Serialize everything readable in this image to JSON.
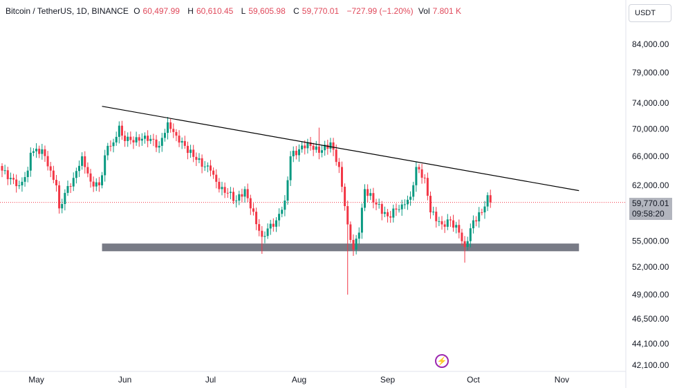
{
  "header": {
    "symbol": "Bitcoin / TetherUS, 1D, BINANCE",
    "o_label": "O",
    "o": "60,497.99",
    "h_label": "H",
    "h": "60,610.45",
    "l_label": "L",
    "l": "59,605.98",
    "c_label": "C",
    "c": "59,770.01",
    "change": "−727.99 (−1.20%)",
    "vol_label": "Vol",
    "vol": "7.801 K"
  },
  "currency_button": "USDT",
  "price_label": {
    "price": "59,770.01",
    "countdown": "09:58:20"
  },
  "colors": {
    "up": "#089981",
    "down": "#f23645",
    "trendline": "#000000",
    "support": "#787b86"
  },
  "chart_data": {
    "type": "candlestick",
    "scale": "log",
    "y_ticks": [
      "84,000.00",
      "79,000.00",
      "74,000.00",
      "70,000.00",
      "66,000.00",
      "62,000.00",
      "55,000.00",
      "52,000.00",
      "49,000.00",
      "46,500.00",
      "44,100.00",
      "42,100.00"
    ],
    "x_ticks": [
      "May",
      "Jun",
      "Jul",
      "Aug",
      "Sep",
      "Oct",
      "Nov"
    ],
    "start_date": "Apr 19",
    "keypoints_day_close": [
      [
        0,
        64000
      ],
      [
        3,
        63000
      ],
      [
        6,
        62000
      ],
      [
        9,
        64000
      ],
      [
        10,
        66500
      ],
      [
        14,
        67000
      ],
      [
        17,
        64000
      ],
      [
        19,
        62000
      ],
      [
        20,
        59000
      ],
      [
        22,
        61000
      ],
      [
        25,
        63000
      ],
      [
        28,
        66000
      ],
      [
        31,
        62500
      ],
      [
        34,
        62000
      ],
      [
        37,
        67500
      ],
      [
        39,
        68000
      ],
      [
        41,
        70500
      ],
      [
        42,
        69000
      ],
      [
        46,
        68000
      ],
      [
        50,
        69000
      ],
      [
        55,
        67500
      ],
      [
        58,
        71000
      ],
      [
        61,
        69000
      ],
      [
        64,
        67500
      ],
      [
        68,
        65500
      ],
      [
        73,
        64000
      ],
      [
        76,
        61500
      ],
      [
        79,
        61000
      ],
      [
        82,
        60000
      ],
      [
        85,
        61500
      ],
      [
        87,
        59000
      ],
      [
        91,
        55500
      ],
      [
        93,
        56500
      ],
      [
        96,
        57500
      ],
      [
        99,
        60000
      ],
      [
        101,
        66000
      ],
      [
        104,
        67000
      ],
      [
        107,
        68000
      ],
      [
        111,
        66500
      ],
      [
        115,
        68000
      ],
      [
        118,
        64500
      ],
      [
        121,
        57000
      ],
      [
        123,
        54000
      ],
      [
        125,
        56000
      ],
      [
        127,
        61500
      ],
      [
        131,
        59500
      ],
      [
        135,
        58000
      ],
      [
        140,
        59500
      ],
      [
        143,
        60500
      ],
      [
        145,
        64500
      ],
      [
        148,
        63000
      ],
      [
        150,
        58500
      ],
      [
        154,
        57000
      ],
      [
        157,
        57500
      ],
      [
        160,
        56000
      ],
      [
        162,
        54300
      ],
      [
        165,
        57500
      ],
      [
        168,
        58500
      ],
      [
        170,
        60700
      ],
      [
        171,
        59770
      ]
    ],
    "trendline": {
      "from": {
        "day": 35,
        "price": 73500
      },
      "to": {
        "day": 202,
        "price": 61300
      }
    },
    "support_zone": {
      "from_day": 35,
      "to_day": 202,
      "high": 54700,
      "low": 53800
    },
    "last_price": 59770.01
  }
}
